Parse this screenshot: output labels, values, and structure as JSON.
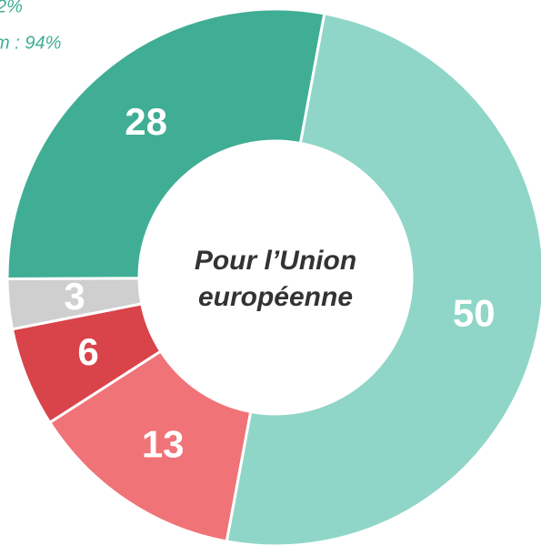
{
  "chart_data": {
    "type": "donut",
    "center_label": [
      "Pour l’Union",
      "européenne"
    ],
    "annotations": [
      "2%",
      "m : 94%"
    ],
    "values": [
      50,
      13,
      6,
      3,
      28
    ],
    "colors": [
      "#8fd6c8",
      "#f07377",
      "#d9434a",
      "#cfcfcf",
      "#3fae94"
    ],
    "start_angle": 10.5
  }
}
